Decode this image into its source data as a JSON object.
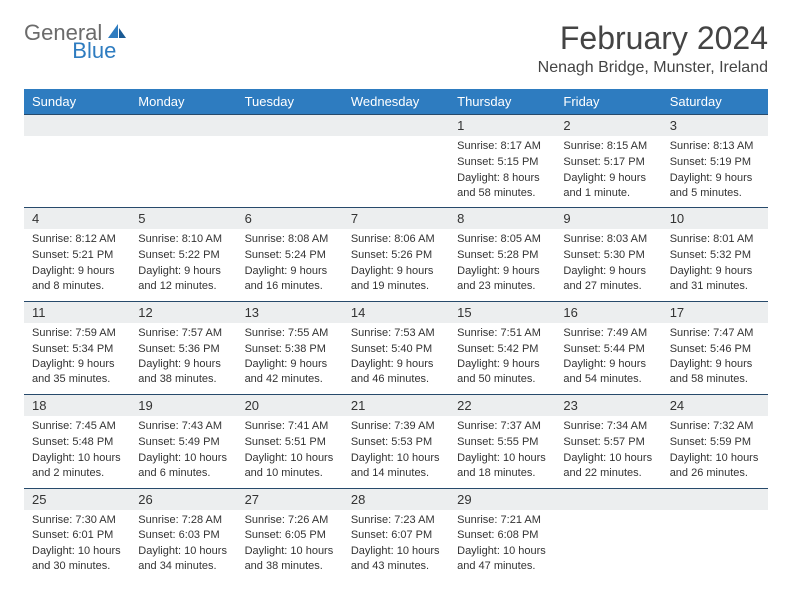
{
  "brand": {
    "part1": "General",
    "part2": "Blue",
    "accent_color": "#2e7cc0",
    "gray_color": "#6b6b6b"
  },
  "title": "February 2024",
  "location": "Nenagh Bridge, Munster, Ireland",
  "colors": {
    "header_bg": "#2e7cc0",
    "date_bg": "#eceeef",
    "border": "#274a6b",
    "text": "#333333",
    "page_bg": "#ffffff"
  },
  "weekdays": [
    "Sunday",
    "Monday",
    "Tuesday",
    "Wednesday",
    "Thursday",
    "Friday",
    "Saturday"
  ],
  "weeks": [
    [
      {
        "date": "",
        "sunrise": "",
        "sunset": "",
        "daylight": ""
      },
      {
        "date": "",
        "sunrise": "",
        "sunset": "",
        "daylight": ""
      },
      {
        "date": "",
        "sunrise": "",
        "sunset": "",
        "daylight": ""
      },
      {
        "date": "",
        "sunrise": "",
        "sunset": "",
        "daylight": ""
      },
      {
        "date": "1",
        "sunrise": "Sunrise: 8:17 AM",
        "sunset": "Sunset: 5:15 PM",
        "daylight": "Daylight: 8 hours and 58 minutes."
      },
      {
        "date": "2",
        "sunrise": "Sunrise: 8:15 AM",
        "sunset": "Sunset: 5:17 PM",
        "daylight": "Daylight: 9 hours and 1 minute."
      },
      {
        "date": "3",
        "sunrise": "Sunrise: 8:13 AM",
        "sunset": "Sunset: 5:19 PM",
        "daylight": "Daylight: 9 hours and 5 minutes."
      }
    ],
    [
      {
        "date": "4",
        "sunrise": "Sunrise: 8:12 AM",
        "sunset": "Sunset: 5:21 PM",
        "daylight": "Daylight: 9 hours and 8 minutes."
      },
      {
        "date": "5",
        "sunrise": "Sunrise: 8:10 AM",
        "sunset": "Sunset: 5:22 PM",
        "daylight": "Daylight: 9 hours and 12 minutes."
      },
      {
        "date": "6",
        "sunrise": "Sunrise: 8:08 AM",
        "sunset": "Sunset: 5:24 PM",
        "daylight": "Daylight: 9 hours and 16 minutes."
      },
      {
        "date": "7",
        "sunrise": "Sunrise: 8:06 AM",
        "sunset": "Sunset: 5:26 PM",
        "daylight": "Daylight: 9 hours and 19 minutes."
      },
      {
        "date": "8",
        "sunrise": "Sunrise: 8:05 AM",
        "sunset": "Sunset: 5:28 PM",
        "daylight": "Daylight: 9 hours and 23 minutes."
      },
      {
        "date": "9",
        "sunrise": "Sunrise: 8:03 AM",
        "sunset": "Sunset: 5:30 PM",
        "daylight": "Daylight: 9 hours and 27 minutes."
      },
      {
        "date": "10",
        "sunrise": "Sunrise: 8:01 AM",
        "sunset": "Sunset: 5:32 PM",
        "daylight": "Daylight: 9 hours and 31 minutes."
      }
    ],
    [
      {
        "date": "11",
        "sunrise": "Sunrise: 7:59 AM",
        "sunset": "Sunset: 5:34 PM",
        "daylight": "Daylight: 9 hours and 35 minutes."
      },
      {
        "date": "12",
        "sunrise": "Sunrise: 7:57 AM",
        "sunset": "Sunset: 5:36 PM",
        "daylight": "Daylight: 9 hours and 38 minutes."
      },
      {
        "date": "13",
        "sunrise": "Sunrise: 7:55 AM",
        "sunset": "Sunset: 5:38 PM",
        "daylight": "Daylight: 9 hours and 42 minutes."
      },
      {
        "date": "14",
        "sunrise": "Sunrise: 7:53 AM",
        "sunset": "Sunset: 5:40 PM",
        "daylight": "Daylight: 9 hours and 46 minutes."
      },
      {
        "date": "15",
        "sunrise": "Sunrise: 7:51 AM",
        "sunset": "Sunset: 5:42 PM",
        "daylight": "Daylight: 9 hours and 50 minutes."
      },
      {
        "date": "16",
        "sunrise": "Sunrise: 7:49 AM",
        "sunset": "Sunset: 5:44 PM",
        "daylight": "Daylight: 9 hours and 54 minutes."
      },
      {
        "date": "17",
        "sunrise": "Sunrise: 7:47 AM",
        "sunset": "Sunset: 5:46 PM",
        "daylight": "Daylight: 9 hours and 58 minutes."
      }
    ],
    [
      {
        "date": "18",
        "sunrise": "Sunrise: 7:45 AM",
        "sunset": "Sunset: 5:48 PM",
        "daylight": "Daylight: 10 hours and 2 minutes."
      },
      {
        "date": "19",
        "sunrise": "Sunrise: 7:43 AM",
        "sunset": "Sunset: 5:49 PM",
        "daylight": "Daylight: 10 hours and 6 minutes."
      },
      {
        "date": "20",
        "sunrise": "Sunrise: 7:41 AM",
        "sunset": "Sunset: 5:51 PM",
        "daylight": "Daylight: 10 hours and 10 minutes."
      },
      {
        "date": "21",
        "sunrise": "Sunrise: 7:39 AM",
        "sunset": "Sunset: 5:53 PM",
        "daylight": "Daylight: 10 hours and 14 minutes."
      },
      {
        "date": "22",
        "sunrise": "Sunrise: 7:37 AM",
        "sunset": "Sunset: 5:55 PM",
        "daylight": "Daylight: 10 hours and 18 minutes."
      },
      {
        "date": "23",
        "sunrise": "Sunrise: 7:34 AM",
        "sunset": "Sunset: 5:57 PM",
        "daylight": "Daylight: 10 hours and 22 minutes."
      },
      {
        "date": "24",
        "sunrise": "Sunrise: 7:32 AM",
        "sunset": "Sunset: 5:59 PM",
        "daylight": "Daylight: 10 hours and 26 minutes."
      }
    ],
    [
      {
        "date": "25",
        "sunrise": "Sunrise: 7:30 AM",
        "sunset": "Sunset: 6:01 PM",
        "daylight": "Daylight: 10 hours and 30 minutes."
      },
      {
        "date": "26",
        "sunrise": "Sunrise: 7:28 AM",
        "sunset": "Sunset: 6:03 PM",
        "daylight": "Daylight: 10 hours and 34 minutes."
      },
      {
        "date": "27",
        "sunrise": "Sunrise: 7:26 AM",
        "sunset": "Sunset: 6:05 PM",
        "daylight": "Daylight: 10 hours and 38 minutes."
      },
      {
        "date": "28",
        "sunrise": "Sunrise: 7:23 AM",
        "sunset": "Sunset: 6:07 PM",
        "daylight": "Daylight: 10 hours and 43 minutes."
      },
      {
        "date": "29",
        "sunrise": "Sunrise: 7:21 AM",
        "sunset": "Sunset: 6:08 PM",
        "daylight": "Daylight: 10 hours and 47 minutes."
      },
      {
        "date": "",
        "sunrise": "",
        "sunset": "",
        "daylight": ""
      },
      {
        "date": "",
        "sunrise": "",
        "sunset": "",
        "daylight": ""
      }
    ]
  ]
}
